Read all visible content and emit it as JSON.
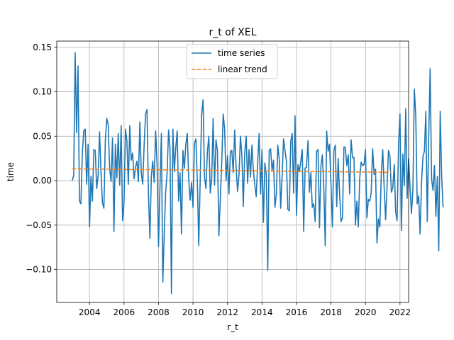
{
  "chart_data": {
    "type": "line",
    "title": "r_t of XEL",
    "xlabel": "r_t",
    "ylabel": "time",
    "xlim": [
      2002.1,
      2022.5
    ],
    "ylim": [
      -0.137,
      0.157
    ],
    "grid": true,
    "legend_position": "upper center",
    "x_ticks": [
      2004,
      2006,
      2008,
      2010,
      2012,
      2014,
      2016,
      2018,
      2020,
      2022
    ],
    "x_tick_labels": [
      "2004",
      "2006",
      "2008",
      "2010",
      "2012",
      "2014",
      "2016",
      "2018",
      "2020",
      "2022"
    ],
    "y_ticks": [
      -0.1,
      -0.05,
      0.0,
      0.05,
      0.1,
      0.15
    ],
    "y_tick_labels": [
      "−0.10",
      "−0.05",
      "0.00",
      "0.05",
      "0.10",
      "0.15"
    ],
    "series": [
      {
        "name": "time series",
        "color": "#1f77b4",
        "style": "solid",
        "x_start": 2003.0,
        "x_step": 0.08333,
        "values": [
          0.0,
          0.006,
          0.144,
          0.054,
          0.129,
          -0.023,
          -0.026,
          0.031,
          0.056,
          0.058,
          -0.004,
          0.041,
          -0.052,
          0.005,
          -0.023,
          0.035,
          0.034,
          -0.009,
          0.006,
          0.055,
          0.008,
          -0.025,
          -0.031,
          0.045,
          0.07,
          0.063,
          0.014,
          -0.001,
          0.048,
          -0.057,
          0.041,
          0.003,
          0.053,
          -0.005,
          0.062,
          -0.045,
          -0.025,
          0.058,
          0.045,
          -0.004,
          0.062,
          0.023,
          0.031,
          0.002,
          0.015,
          0.022,
          -0.001,
          0.066,
          0.009,
          -0.004,
          0.04,
          0.075,
          0.08,
          -0.015,
          -0.065,
          0.005,
          0.022,
          -0.002,
          0.056,
          0.02,
          -0.074,
          -0.008,
          0.053,
          -0.114,
          -0.059,
          -0.012,
          0.009,
          0.057,
          0.036,
          -0.127,
          0.058,
          0.01,
          0.037,
          0.056,
          -0.023,
          0.009,
          -0.06,
          0.034,
          0.014,
          0.041,
          0.053,
          0.002,
          -0.022,
          -0.002,
          -0.03,
          0.042,
          0.047,
          0.0,
          -0.073,
          0.0,
          0.074,
          0.091,
          0.004,
          -0.009,
          0.032,
          0.05,
          -0.014,
          0.002,
          0.07,
          -0.005,
          0.046,
          0.034,
          -0.062,
          -0.02,
          0.02,
          0.075,
          0.058,
          0.0,
          0.028,
          -0.015,
          0.033,
          0.034,
          0.009,
          0.057,
          0.015,
          -0.012,
          0.006,
          0.05,
          0.029,
          -0.029,
          0.032,
          0.05,
          -0.003,
          0.035,
          0.004,
          0.04,
          0.011,
          -0.005,
          -0.018,
          0.02,
          0.053,
          -0.015,
          0.035,
          -0.047,
          0.02,
          0.007,
          -0.101,
          0.034,
          0.036,
          0.011,
          0.023,
          -0.03,
          -0.015,
          0.04,
          0.024,
          -0.031,
          0.005,
          0.047,
          0.034,
          0.022,
          -0.032,
          -0.034,
          0.044,
          0.053,
          -0.014,
          0.073,
          -0.039,
          0.018,
          0.01,
          0.022,
          0.035,
          -0.057,
          0.014,
          0.015,
          0.045,
          -0.013,
          0.009,
          -0.03,
          -0.026,
          -0.046,
          0.033,
          0.035,
          -0.053,
          0.016,
          0.029,
          -0.007,
          -0.073,
          0.056,
          0.033,
          0.041,
          -0.004,
          -0.052,
          0.034,
          0.04,
          -0.029,
          0.025,
          -0.015,
          -0.046,
          -0.042,
          0.038,
          0.037,
          0.017,
          0.029,
          -0.015,
          0.046,
          0.026,
          0.026,
          -0.05,
          -0.023,
          -0.052,
          0.003,
          0.021,
          0.017,
          0.018,
          0.035,
          -0.042,
          -0.021,
          -0.023,
          -0.013,
          0.036,
          0.007,
          0.013,
          -0.07,
          -0.043,
          -0.052,
          0.008,
          0.035,
          -0.007,
          -0.044,
          -0.007,
          0.034,
          0.028,
          -0.013,
          -0.008,
          0.018,
          -0.035,
          -0.045,
          0.039,
          0.075,
          -0.056,
          0.03,
          -0.006,
          0.081,
          -0.02,
          0.025,
          -0.007,
          -0.037,
          -0.01,
          0.103,
          0.073,
          -0.026,
          -0.017,
          -0.06,
          -0.002,
          0.027,
          0.033,
          0.078,
          -0.046,
          0.05,
          0.126,
          0.002,
          -0.011,
          0.017,
          -0.04,
          0.005,
          -0.079,
          0.078,
          0.005,
          -0.03
        ]
      },
      {
        "name": "linear trend",
        "color": "#ff7f0e",
        "style": "dashed",
        "x": [
          2003.0,
          2021.5
        ],
        "values": [
          0.0133,
          0.0094
        ]
      }
    ]
  }
}
